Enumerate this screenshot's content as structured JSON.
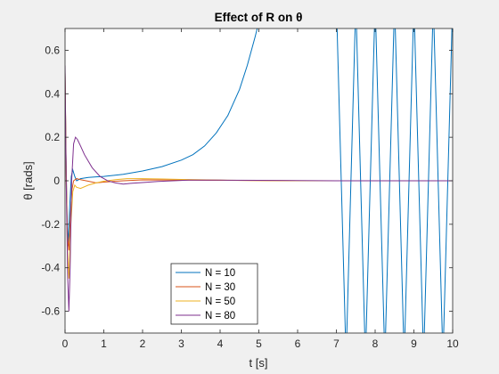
{
  "chart_data": {
    "type": "line",
    "title": "Effect of R on θ",
    "xlabel": "t [s]",
    "ylabel": "θ [rads]",
    "xlim": [
      0,
      10
    ],
    "ylim": [
      -0.7,
      0.7
    ],
    "grid": false,
    "legend_location": "bottom-center",
    "x_ticks": [
      "0",
      "1",
      "2",
      "3",
      "4",
      "5",
      "6",
      "7",
      "8",
      "9",
      "10"
    ],
    "y_ticks": [
      "-0.6",
      "-0.4",
      "-0.2",
      "0",
      "0.2",
      "0.4",
      "0.6"
    ],
    "colors": {
      "background": "#f0f0f0",
      "plot_area": "#ffffff",
      "axis": "#262626"
    },
    "series": [
      {
        "name": "N = 10",
        "color": "#0072bd",
        "shape": "unstable-growth-then-oscillation",
        "x": [
          0,
          0.02,
          0.05,
          0.08,
          0.12,
          0.16,
          0.2,
          0.25,
          0.3,
          0.35,
          0.4,
          0.6,
          0.8,
          1,
          1.5,
          2,
          2.5,
          3,
          3.3,
          3.6,
          3.9,
          4.2,
          4.5,
          4.7,
          4.9,
          5.0
        ],
        "y": [
          0.5,
          0.15,
          -0.15,
          -0.3,
          -0.12,
          0.02,
          0.05,
          0.02,
          0.0,
          0.005,
          0.01,
          0.015,
          0.018,
          0.02,
          0.03,
          0.045,
          0.065,
          0.095,
          0.12,
          0.16,
          0.22,
          0.3,
          0.42,
          0.53,
          0.66,
          0.73
        ],
        "oscillation": {
          "start": 7.0,
          "end": 10.0,
          "period": 0.5,
          "amplitude_exceeds_ylim": true
        }
      },
      {
        "name": "N = 30",
        "color": "#d95319",
        "x": [
          0,
          0.03,
          0.06,
          0.1,
          0.14,
          0.18,
          0.22,
          0.3,
          0.4,
          0.6,
          0.8,
          1,
          1.5,
          2,
          3,
          4,
          5,
          6,
          7,
          8,
          9,
          10
        ],
        "y": [
          0.5,
          0.05,
          -0.25,
          -0.32,
          -0.15,
          -0.04,
          0.0,
          0.01,
          0.005,
          -0.002,
          -0.01,
          -0.006,
          0.0,
          0.004,
          0.003,
          0.002,
          0.001,
          0.0,
          0.0,
          0.0,
          0.0,
          0.0
        ]
      },
      {
        "name": "N = 50",
        "color": "#edb120",
        "x": [
          0,
          0.03,
          0.06,
          0.1,
          0.15,
          0.2,
          0.25,
          0.3,
          0.4,
          0.6,
          0.8,
          1,
          1.3,
          1.6,
          2,
          2.5,
          3,
          4,
          5,
          6,
          7,
          8,
          9,
          10
        ],
        "y": [
          0.5,
          0.0,
          -0.3,
          -0.45,
          -0.2,
          -0.05,
          -0.02,
          -0.03,
          -0.035,
          -0.02,
          -0.01,
          -0.002,
          0.005,
          0.01,
          0.01,
          0.008,
          0.006,
          0.003,
          0.001,
          0.0,
          0.0,
          0.0,
          0.0,
          0.0
        ]
      },
      {
        "name": "N = 80",
        "color": "#7e2f8e",
        "x": [
          0,
          0.03,
          0.07,
          0.1,
          0.13,
          0.17,
          0.22,
          0.27,
          0.32,
          0.4,
          0.5,
          0.7,
          0.9,
          1.1,
          1.3,
          1.5,
          1.7,
          2.0,
          2.4,
          2.8,
          3.2,
          4,
          5,
          6,
          7,
          8,
          9,
          10
        ],
        "y": [
          0.53,
          0.0,
          -0.45,
          -0.6,
          -0.4,
          0.0,
          0.17,
          0.2,
          0.19,
          0.16,
          0.12,
          0.06,
          0.02,
          0.0,
          -0.01,
          -0.015,
          -0.012,
          -0.008,
          -0.003,
          0.0,
          0.003,
          0.003,
          0.002,
          0.001,
          0.0,
          0.0,
          0.0,
          0.0
        ]
      }
    ]
  }
}
